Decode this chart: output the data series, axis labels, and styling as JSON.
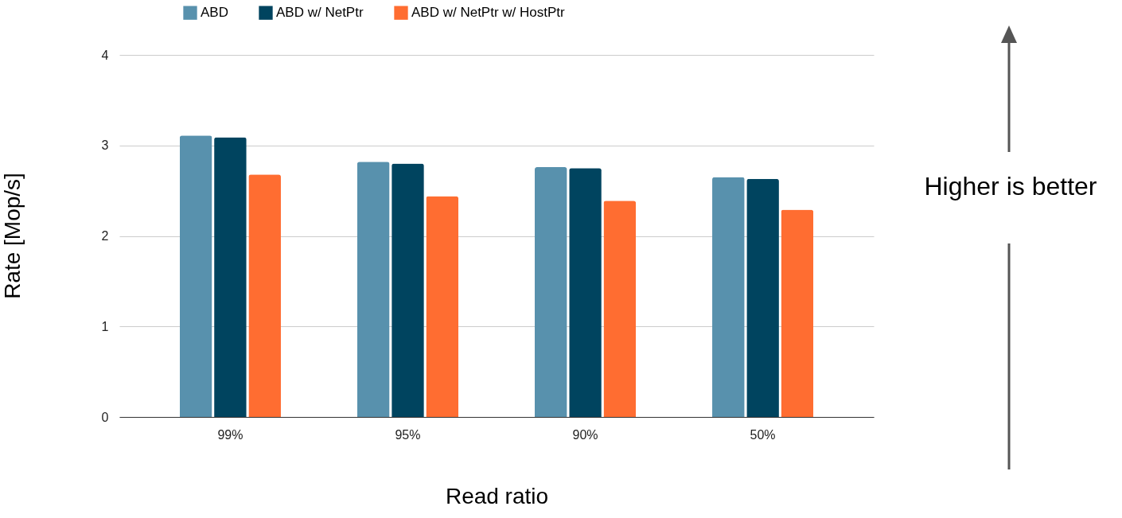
{
  "chart_data": {
    "type": "bar",
    "xlabel": "Read ratio",
    "ylabel": "Rate [Mop/s]",
    "categories": [
      "99%",
      "95%",
      "90%",
      "50%"
    ],
    "series": [
      {
        "name": "ABD",
        "color": "#5891ad",
        "values": [
          3.11,
          2.82,
          2.76,
          2.65
        ]
      },
      {
        "name": "ABD w/ NetPtr",
        "color": "#00445f",
        "values": [
          3.09,
          2.8,
          2.75,
          2.63
        ]
      },
      {
        "name": "ABD w/ NetPtr w/ HostPtr",
        "color": "#ff6d31",
        "values": [
          2.68,
          2.44,
          2.39,
          2.29
        ]
      }
    ],
    "ylim": [
      0,
      4
    ],
    "yticks": [
      0,
      1,
      2,
      3,
      4
    ],
    "grid": "y",
    "legend": "top",
    "annotations": [
      "Higher is better"
    ]
  }
}
